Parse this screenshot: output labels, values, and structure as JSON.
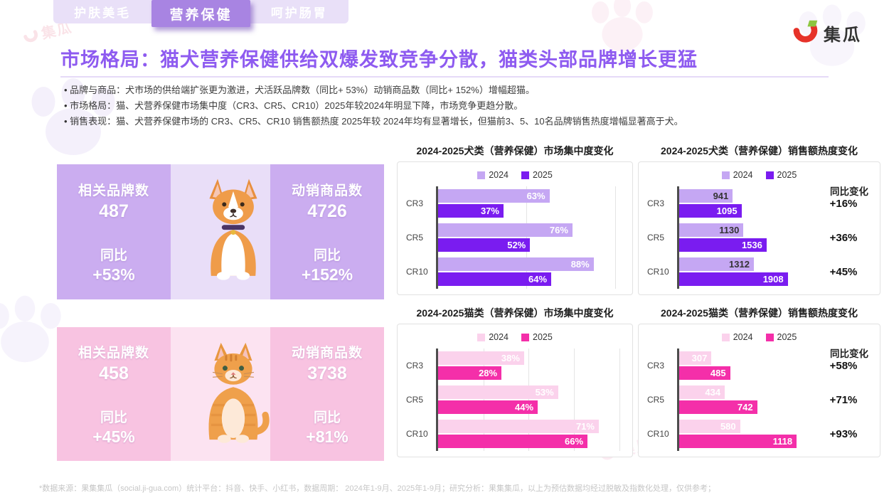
{
  "brand": {
    "name": "集瓜"
  },
  "tabs": {
    "items": [
      {
        "label": "护肤美毛",
        "active": false
      },
      {
        "label": "营养保健",
        "active": true
      },
      {
        "label": "呵护肠胃",
        "active": false
      }
    ]
  },
  "header": {
    "title": "市场格局：猫犬营养保健供给双爆发致竞争分散，猫类头部品牌增长更猛"
  },
  "bullets": [
    "品牌与商品：犬市场的供给端扩张更为激进，犬活跃品牌数（同比+ 53%）动销商品数（同比+ 152%）增幅超猫。",
    "市场格局：猫、犬营养保健市场集中度（CR3、CR5、CR10）2025年较2024年明显下降，市场竞争更趋分散。",
    "销售表现：猫、犬营养保健市场的 CR3、CR5、CR10 销售额热度 2025年较 2024年均有显著增长，但猫前3、5、10名品牌销售热度增幅显著高于犬。"
  ],
  "summary_cards": [
    {
      "animal": "dog",
      "brand_stat": {
        "label": "相关品牌数",
        "value": "487",
        "yoy_label": "同比",
        "yoy": "+53%"
      },
      "product_stat": {
        "label": "动销商品数",
        "value": "4726",
        "yoy_label": "同比",
        "yoy": "+152%"
      }
    },
    {
      "animal": "cat",
      "brand_stat": {
        "label": "相关品牌数",
        "value": "458",
        "yoy_label": "同比",
        "yoy": "+45%"
      },
      "product_stat": {
        "label": "动销商品数",
        "value": "3738",
        "yoy_label": "同比",
        "yoy": "+81%"
      }
    }
  ],
  "chart_data": [
    {
      "id": "dog-concentration",
      "type": "bar",
      "orientation": "horizontal",
      "title": "2024-2025犬类（营养保健）市场集中度变化",
      "categories": [
        "CR3",
        "CR5",
        "CR10"
      ],
      "series": [
        {
          "name": "2024",
          "values": [
            63,
            76,
            88
          ],
          "color": "#c5a7f3",
          "label_color": "#ffffff"
        },
        {
          "name": "2025",
          "values": [
            37,
            52,
            64
          ],
          "color": "#7a1cf0",
          "label_color": "#ffffff"
        }
      ],
      "value_suffix": "%",
      "xmax": 105,
      "gridlines": [
        50,
        100
      ],
      "legend_position": "top"
    },
    {
      "id": "dog-sales-heat",
      "type": "bar",
      "orientation": "horizontal",
      "title": "2024-2025犬类（营养保健）销售额热度变化",
      "categories": [
        "CR3",
        "CR5",
        "CR10"
      ],
      "series": [
        {
          "name": "2024",
          "values": [
            941,
            1130,
            1312
          ],
          "color": "#c5a7f3",
          "label_color": "#333333"
        },
        {
          "name": "2025",
          "values": [
            1095,
            1536,
            1908
          ],
          "color": "#7a1cf0",
          "label_color": "#ffffff"
        }
      ],
      "value_suffix": "",
      "xmax": 2400,
      "gridlines": [],
      "legend_position": "top",
      "yoy_header": "同比变化",
      "yoy_values": [
        "+16%",
        "+36%",
        "+45%"
      ]
    },
    {
      "id": "cat-concentration",
      "type": "bar",
      "orientation": "horizontal",
      "title": "2024-2025猫类（营养保健）市场集中度变化",
      "categories": [
        "CR3",
        "CR5",
        "CR10"
      ],
      "series": [
        {
          "name": "2024",
          "values": [
            38,
            53,
            71
          ],
          "color": "#fbd2ec",
          "label_color": "#ffffff"
        },
        {
          "name": "2025",
          "values": [
            28,
            44,
            66
          ],
          "color": "#f42fa9",
          "label_color": "#ffffff"
        }
      ],
      "value_suffix": "%",
      "xmax": 82,
      "gridlines": [
        20,
        40,
        60,
        80
      ],
      "legend_position": "top"
    },
    {
      "id": "cat-sales-heat",
      "type": "bar",
      "orientation": "horizontal",
      "title": "2024-2025猫类（营养保健）销售额热度变化",
      "categories": [
        "CR3",
        "CR5",
        "CR10"
      ],
      "series": [
        {
          "name": "2024",
          "values": [
            307,
            434,
            580
          ],
          "color": "#fbd2ec",
          "label_color": "#ffffff"
        },
        {
          "name": "2025",
          "values": [
            485,
            742,
            1118
          ],
          "color": "#f42fa9",
          "label_color": "#ffffff"
        }
      ],
      "value_suffix": "",
      "xmax": 1300,
      "gridlines": [],
      "legend_position": "top",
      "yoy_header": "同比变化",
      "yoy_values": [
        "+58%",
        "+71%",
        "+93%"
      ]
    }
  ],
  "footer": {
    "note": "*数据来源：果集集瓜（social.ji-gua.com）统计平台：抖音、快手、小红书，数据周期： 2024年1-9月、2025年1-9月；研究分析：果集集瓜，以上为预估数据均经过脱敏及指数化处理，仅供参考；"
  },
  "colors": {
    "accent_purple": "#8e5bf0",
    "dog_2024": "#c5a7f3",
    "dog_2025": "#7a1cf0",
    "cat_2024": "#fbd2ec",
    "cat_2025": "#f42fa9",
    "tab_active_bg": "#a884e2",
    "brand_red": "#e63229",
    "brand_green": "#8dc63f"
  }
}
